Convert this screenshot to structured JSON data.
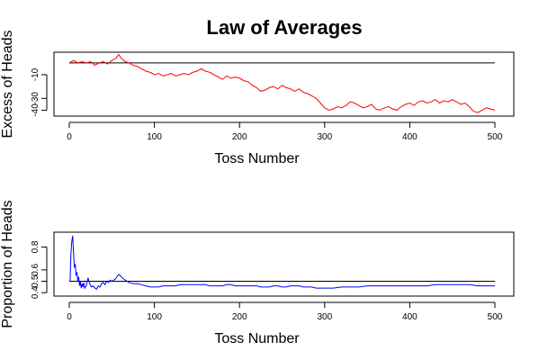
{
  "figure": {
    "title": "Law of Averages"
  },
  "chart_data": [
    {
      "type": "line",
      "xlabel": "Toss Number",
      "ylabel": "Excess of Heads",
      "xlim": [
        0,
        500
      ],
      "ylim": [
        -45,
        9
      ],
      "xticks": [
        0,
        100,
        200,
        300,
        400,
        500
      ],
      "yticks": [
        -40,
        -30,
        -10
      ],
      "reference_line": 0,
      "line_color": "#ff0000",
      "reference_color": "#000000",
      "x": [
        0,
        5,
        10,
        15,
        20,
        25,
        30,
        35,
        40,
        45,
        50,
        55,
        58,
        62,
        66,
        70,
        75,
        80,
        85,
        90,
        95,
        100,
        105,
        110,
        115,
        120,
        125,
        130,
        135,
        140,
        145,
        150,
        155,
        160,
        165,
        170,
        175,
        180,
        185,
        190,
        195,
        200,
        205,
        210,
        215,
        220,
        225,
        230,
        235,
        240,
        245,
        250,
        255,
        260,
        265,
        270,
        275,
        280,
        285,
        290,
        295,
        300,
        305,
        310,
        315,
        320,
        325,
        330,
        335,
        340,
        345,
        350,
        355,
        360,
        365,
        370,
        375,
        380,
        385,
        390,
        395,
        400,
        405,
        410,
        415,
        420,
        425,
        430,
        435,
        440,
        445,
        450,
        455,
        460,
        465,
        470,
        475,
        480,
        485,
        490,
        495,
        500
      ],
      "y": [
        0,
        2,
        0,
        1,
        0,
        1,
        -2,
        0,
        1,
        -1,
        2,
        4,
        7,
        3,
        1,
        0,
        -2,
        -3,
        -5,
        -7,
        -8,
        -10,
        -9,
        -11,
        -10,
        -9,
        -11,
        -10,
        -9,
        -10,
        -8,
        -7,
        -5,
        -7,
        -8,
        -10,
        -12,
        -14,
        -11,
        -13,
        -12,
        -13,
        -15,
        -16,
        -19,
        -21,
        -24,
        -23,
        -21,
        -20,
        -22,
        -19,
        -21,
        -22,
        -24,
        -22,
        -25,
        -26,
        -28,
        -30,
        -34,
        -38,
        -40,
        -39,
        -37,
        -38,
        -36,
        -33,
        -34,
        -36,
        -38,
        -37,
        -35,
        -39,
        -40,
        -38,
        -37,
        -39,
        -40,
        -37,
        -35,
        -34,
        -36,
        -33,
        -32,
        -34,
        -33,
        -31,
        -34,
        -32,
        -33,
        -31,
        -33,
        -35,
        -34,
        -37,
        -41,
        -42,
        -40,
        -38,
        -39,
        -40
      ]
    },
    {
      "type": "line",
      "xlabel": "Toss Number",
      "ylabel": "Proportion of Heads",
      "xlim": [
        0,
        500
      ],
      "ylim": [
        0.37,
        0.93
      ],
      "xticks": [
        0,
        100,
        200,
        300,
        400,
        500
      ],
      "yticks": [
        0.4,
        0.5,
        0.6,
        0.8
      ],
      "reference_line": 0.5,
      "line_color": "#0000ff",
      "reference_color": "#000000",
      "x": [
        1,
        2,
        3,
        4,
        5,
        6,
        7,
        8,
        9,
        10,
        11,
        12,
        13,
        14,
        15,
        16,
        17,
        18,
        20,
        22,
        24,
        26,
        28,
        30,
        32,
        34,
        36,
        38,
        40,
        42,
        44,
        46,
        48,
        50,
        52,
        54,
        56,
        58,
        60,
        62,
        64,
        66,
        68,
        70,
        75,
        80,
        85,
        90,
        95,
        100,
        105,
        110,
        115,
        120,
        125,
        130,
        135,
        140,
        145,
        150,
        155,
        160,
        165,
        170,
        175,
        180,
        185,
        190,
        195,
        200,
        205,
        210,
        215,
        220,
        225,
        230,
        235,
        240,
        245,
        250,
        255,
        260,
        265,
        270,
        275,
        280,
        285,
        290,
        295,
        300,
        310,
        320,
        330,
        340,
        350,
        360,
        370,
        380,
        390,
        400,
        410,
        420,
        430,
        440,
        450,
        460,
        470,
        480,
        490,
        500
      ],
      "y": [
        0.5,
        0.75,
        0.85,
        0.9,
        0.75,
        0.62,
        0.65,
        0.55,
        0.58,
        0.5,
        0.54,
        0.46,
        0.5,
        0.44,
        0.48,
        0.45,
        0.49,
        0.44,
        0.46,
        0.53,
        0.48,
        0.45,
        0.46,
        0.44,
        0.43,
        0.46,
        0.45,
        0.48,
        0.49,
        0.47,
        0.5,
        0.49,
        0.51,
        0.5,
        0.51,
        0.52,
        0.54,
        0.56,
        0.55,
        0.53,
        0.52,
        0.51,
        0.5,
        0.49,
        0.48,
        0.48,
        0.47,
        0.46,
        0.45,
        0.45,
        0.45,
        0.46,
        0.46,
        0.46,
        0.46,
        0.47,
        0.47,
        0.47,
        0.47,
        0.47,
        0.47,
        0.47,
        0.46,
        0.46,
        0.46,
        0.46,
        0.47,
        0.47,
        0.46,
        0.46,
        0.46,
        0.46,
        0.46,
        0.46,
        0.45,
        0.45,
        0.45,
        0.46,
        0.46,
        0.45,
        0.45,
        0.46,
        0.46,
        0.46,
        0.45,
        0.45,
        0.45,
        0.44,
        0.44,
        0.44,
        0.44,
        0.45,
        0.45,
        0.45,
        0.46,
        0.46,
        0.46,
        0.46,
        0.46,
        0.46,
        0.46,
        0.46,
        0.47,
        0.47,
        0.47,
        0.47,
        0.47,
        0.46,
        0.46,
        0.46
      ]
    }
  ]
}
